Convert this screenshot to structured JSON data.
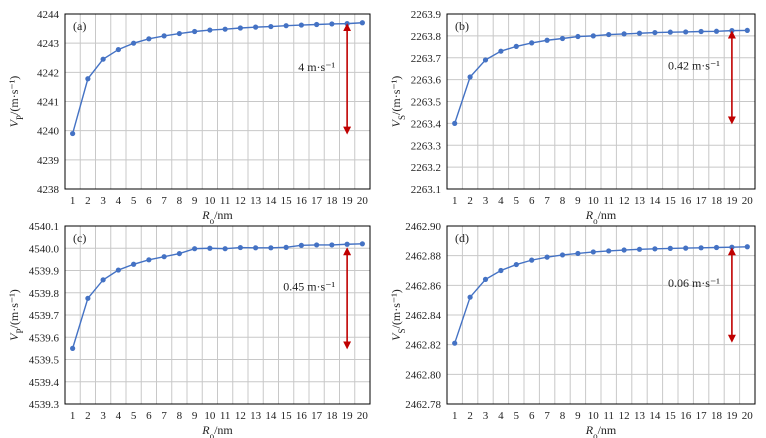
{
  "chart_data": [
    {
      "type": "line",
      "panel_label": "(a)",
      "xlabel": "R_o/nm",
      "ylabel": "V_P/(m·s⁻¹)",
      "x": [
        1,
        2,
        3,
        4,
        5,
        6,
        7,
        8,
        9,
        10,
        11,
        12,
        13,
        14,
        15,
        16,
        17,
        18,
        19,
        20
      ],
      "xticks": [
        "1",
        "2",
        "3",
        "4",
        "5",
        "6",
        "7",
        "8",
        "9",
        "10",
        "11",
        "12",
        "13",
        "14",
        "15",
        "16",
        "17",
        "18",
        "19",
        "20"
      ],
      "ylim": [
        4238,
        4244
      ],
      "yticks": [
        "4238",
        "4239",
        "4240",
        "4241",
        "4242",
        "4243",
        "4244"
      ],
      "values": [
        4239.9,
        4241.78,
        4242.45,
        4242.78,
        4243.0,
        4243.15,
        4243.25,
        4243.33,
        4243.4,
        4243.45,
        4243.48,
        4243.52,
        4243.55,
        4243.57,
        4243.6,
        4243.62,
        4243.64,
        4243.66,
        4243.67,
        4243.7
      ],
      "annotation": {
        "text": "4 m·s⁻¹",
        "x": 19,
        "y_top": 4243.65,
        "y_bottom": 4239.9
      },
      "color": "#4472c4",
      "arrow_color": "#c00000",
      "grid": true
    },
    {
      "type": "line",
      "panel_label": "(b)",
      "xlabel": "R_o/nm",
      "ylabel": "V_S/(m·s⁻¹)",
      "x": [
        1,
        2,
        3,
        4,
        5,
        6,
        7,
        8,
        9,
        10,
        11,
        12,
        13,
        14,
        15,
        16,
        17,
        18,
        19,
        20
      ],
      "xticks": [
        "1",
        "2",
        "3",
        "4",
        "5",
        "6",
        "7",
        "8",
        "9",
        "10",
        "11",
        "12",
        "13",
        "14",
        "15",
        "16",
        "17",
        "18",
        "19",
        "20"
      ],
      "ylim": [
        2263.1,
        2263.9
      ],
      "yticks": [
        "2263.1",
        "2263.2",
        "2263.3",
        "2263.4",
        "2263.5",
        "2263.6",
        "2263.7",
        "2263.8",
        "2263.9"
      ],
      "values": [
        2263.4,
        2263.612,
        2263.69,
        2263.73,
        2263.752,
        2263.768,
        2263.78,
        2263.788,
        2263.797,
        2263.8,
        2263.806,
        2263.809,
        2263.812,
        2263.815,
        2263.817,
        2263.818,
        2263.82,
        2263.821,
        2263.824,
        2263.825
      ],
      "annotation": {
        "text": "0.42 m·s⁻¹",
        "x": 19,
        "y_top": 2263.82,
        "y_bottom": 2263.4
      },
      "color": "#4472c4",
      "arrow_color": "#c00000",
      "grid": true
    },
    {
      "type": "line",
      "panel_label": "(c)",
      "xlabel": "R_o/nm",
      "ylabel": "V_P/(m·s⁻¹)",
      "x": [
        1,
        2,
        3,
        4,
        5,
        6,
        7,
        8,
        9,
        10,
        11,
        12,
        13,
        14,
        15,
        16,
        17,
        18,
        19,
        20
      ],
      "xticks": [
        "1",
        "2",
        "3",
        "4",
        "5",
        "6",
        "7",
        "8",
        "9",
        "10",
        "11",
        "12",
        "13",
        "14",
        "15",
        "16",
        "17",
        "18",
        "19",
        "20"
      ],
      "ylim": [
        4539.3,
        4540.1
      ],
      "yticks": [
        "4539.3",
        "4539.4",
        "4539.5",
        "4539.6",
        "4539.7",
        "4539.8",
        "4539.9",
        "4540.0",
        "4540.1"
      ],
      "values": [
        4539.55,
        4539.775,
        4539.858,
        4539.902,
        4539.928,
        4539.948,
        4539.962,
        4539.976,
        4539.998,
        4540.0,
        4539.998,
        4540.003,
        4540.002,
        4540.002,
        4540.004,
        4540.013,
        4540.015,
        4540.015,
        4540.018,
        4540.02
      ],
      "annotation": {
        "text": "0.45 m·s⁻¹",
        "x": 19,
        "y_top": 4540.0,
        "y_bottom": 4539.55
      },
      "color": "#4472c4",
      "arrow_color": "#c00000",
      "grid": true
    },
    {
      "type": "line",
      "panel_label": "(d)",
      "xlabel": "R_o/nm",
      "ylabel": "V_S/(m·s⁻¹)",
      "x": [
        1,
        2,
        3,
        4,
        5,
        6,
        7,
        8,
        9,
        10,
        11,
        12,
        13,
        14,
        15,
        16,
        17,
        18,
        19,
        20
      ],
      "xticks": [
        "1",
        "2",
        "3",
        "4",
        "5",
        "6",
        "7",
        "8",
        "9",
        "10",
        "11",
        "12",
        "13",
        "14",
        "15",
        "16",
        "17",
        "18",
        "19",
        "20"
      ],
      "ylim": [
        2462.78,
        2462.9
      ],
      "yticks": [
        "2462.78",
        "2462.80",
        "2462.82",
        "2462.84",
        "2462.86",
        "2462.88",
        "2462.90"
      ],
      "values": [
        2462.821,
        2462.852,
        2462.864,
        2462.87,
        2462.874,
        2462.877,
        2462.879,
        2462.8805,
        2462.8815,
        2462.8825,
        2462.8832,
        2462.8838,
        2462.8843,
        2462.8846,
        2462.8849,
        2462.8851,
        2462.8853,
        2462.8855,
        2462.8857,
        2462.886
      ],
      "annotation": {
        "text": "0.06 m·s⁻¹",
        "x": 19,
        "y_top": 2462.885,
        "y_bottom": 2462.822
      },
      "color": "#4472c4",
      "arrow_color": "#c00000",
      "grid": true
    }
  ]
}
